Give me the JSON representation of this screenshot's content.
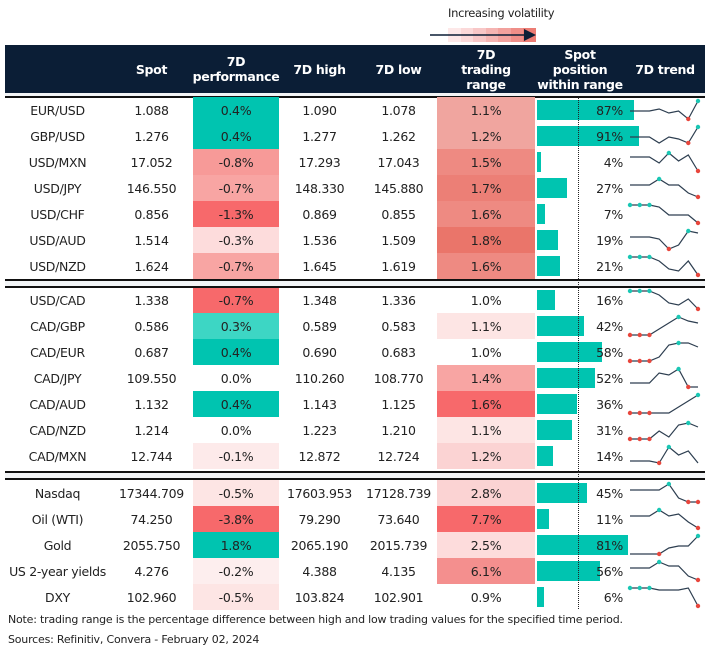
{
  "legend": {
    "label": "Increasing volatility",
    "gradient": [
      "#fde8e8",
      "#fbd9d9",
      "#f8c7c7",
      "#f5b4b2",
      "#f2a19d",
      "#ef8e88",
      "#ec7c74"
    ]
  },
  "colors": {
    "header_bg": "#0b1e36",
    "positive_strong": "#00c4b0",
    "positive_light": "#3dd6c4",
    "bar": "#00c4b0",
    "sparkline": "#2d3e50",
    "marker_high": "#19c7b4",
    "marker_low": "#e8463c"
  },
  "headers": {
    "name": "",
    "spot": "Spot",
    "performance": "7D performance",
    "high": "7D high",
    "low": "7D low",
    "range": "7D trading range",
    "position": "Spot position within range",
    "trend": "7D trend"
  },
  "groups": [
    {
      "rows": [
        {
          "name": "EUR/USD",
          "spot": "1.088",
          "perf": "0.4%",
          "perf_bg": "#00c4b0",
          "high": "1.090",
          "low": "1.078",
          "range": "1.1%",
          "range_bg": "#f0a59f",
          "position": 87,
          "position_label": "87%",
          "trend": [
            5,
            5,
            5,
            4,
            6,
            5,
            9,
            0
          ],
          "high_idx": [
            7
          ],
          "low_idx": [
            6
          ]
        },
        {
          "name": "GBP/USD",
          "spot": "1.276",
          "perf": "0.4%",
          "perf_bg": "#00c4b0",
          "high": "1.277",
          "low": "1.262",
          "range": "1.2%",
          "range_bg": "#f0a59f",
          "position": 91,
          "position_label": "91%",
          "trend": [
            5,
            5,
            5,
            8,
            5,
            6,
            8,
            0
          ],
          "high_idx": [
            7
          ],
          "low_idx": [
            6
          ]
        },
        {
          "name": "USD/MXN",
          "spot": "17.052",
          "perf": "-0.8%",
          "perf_bg": "#f79a98",
          "high": "17.293",
          "low": "17.043",
          "range": "1.5%",
          "range_bg": "#ee8a82",
          "position": 4,
          "position_label": "4%",
          "trend": [
            2,
            2,
            2,
            5,
            0,
            4,
            1,
            9
          ],
          "high_idx": [
            4
          ],
          "low_idx": [
            7
          ]
        },
        {
          "name": "USD/JPY",
          "spot": "146.550",
          "perf": "-0.7%",
          "perf_bg": "#f8a5a3",
          "high": "148.330",
          "low": "145.880",
          "range": "1.7%",
          "range_bg": "#ec7f76",
          "position": 27,
          "position_label": "27%",
          "trend": [
            3,
            3,
            3,
            0,
            3,
            3,
            7,
            9
          ],
          "high_idx": [
            3
          ],
          "low_idx": [
            7
          ]
        },
        {
          "name": "USD/CHF",
          "spot": "0.856",
          "perf": "-1.3%",
          "perf_bg": "#f7696b",
          "high": "0.869",
          "low": "0.855",
          "range": "1.6%",
          "range_bg": "#ee8a82",
          "position": 7,
          "position_label": "7%",
          "trend": [
            0,
            0,
            0,
            1,
            5,
            5,
            5,
            9
          ],
          "high_idx": [
            0,
            1,
            2
          ],
          "low_idx": [
            7
          ]
        },
        {
          "name": "USD/AUD",
          "spot": "1.514",
          "perf": "-0.3%",
          "perf_bg": "#fddcdc",
          "high": "1.536",
          "low": "1.509",
          "range": "1.8%",
          "range_bg": "#ea756a",
          "position": 19,
          "position_label": "19%",
          "trend": [
            3,
            3,
            3,
            4,
            9,
            7,
            0,
            1
          ],
          "high_idx": [
            6
          ],
          "low_idx": [
            4
          ]
        },
        {
          "name": "USD/NZD",
          "spot": "1.624",
          "perf": "-0.7%",
          "perf_bg": "#f8a5a3",
          "high": "1.645",
          "low": "1.619",
          "range": "1.6%",
          "range_bg": "#ee8a82",
          "position": 21,
          "position_label": "21%",
          "trend": [
            0,
            0,
            0,
            2,
            6,
            7,
            2,
            9
          ],
          "high_idx": [
            0,
            1,
            2
          ],
          "low_idx": [
            7
          ]
        }
      ]
    },
    {
      "rows": [
        {
          "name": "USD/CAD",
          "spot": "1.338",
          "perf": "-0.7%",
          "perf_bg": "#f7696b",
          "high": "1.348",
          "low": "1.336",
          "range": "1.0%",
          "range_bg": "#ffffff",
          "position": 16,
          "position_label": "16%",
          "trend": [
            0,
            0,
            0,
            2,
            6,
            7,
            4,
            9
          ],
          "high_idx": [
            0,
            1,
            2
          ],
          "low_idx": [
            7
          ]
        },
        {
          "name": "CAD/GBP",
          "spot": "0.586",
          "perf": "0.3%",
          "perf_bg": "#3dd6c4",
          "high": "0.589",
          "low": "0.583",
          "range": "1.1%",
          "range_bg": "#fde5e4",
          "position": 42,
          "position_label": "42%",
          "trend": [
            9,
            9,
            9,
            6,
            3,
            0,
            2,
            3
          ],
          "high_idx": [
            5
          ],
          "low_idx": [
            0,
            1,
            2
          ]
        },
        {
          "name": "CAD/EUR",
          "spot": "0.687",
          "perf": "0.4%",
          "perf_bg": "#00c4b0",
          "high": "0.690",
          "low": "0.683",
          "range": "1.0%",
          "range_bg": "#ffffff",
          "position": 58,
          "position_label": "58%",
          "trend": [
            9,
            9,
            9,
            7,
            1,
            0,
            0,
            2
          ],
          "high_idx": [
            5
          ],
          "low_idx": [
            0,
            1,
            2
          ]
        },
        {
          "name": "CAD/JPY",
          "spot": "109.550",
          "perf": "0.0%",
          "perf_bg": "#ffffff",
          "high": "110.260",
          "low": "108.770",
          "range": "1.4%",
          "range_bg": "#f8a5a3",
          "position": 52,
          "position_label": "52%",
          "trend": [
            7,
            7,
            7,
            2,
            3,
            0,
            9,
            9
          ],
          "high_idx": [
            5
          ],
          "low_idx": [
            6
          ]
        },
        {
          "name": "CAD/AUD",
          "spot": "1.132",
          "perf": "0.4%",
          "perf_bg": "#00c4b0",
          "high": "1.143",
          "low": "1.125",
          "range": "1.6%",
          "range_bg": "#f7696b",
          "position": 36,
          "position_label": "36%",
          "trend": [
            9,
            9,
            9,
            9,
            9,
            6,
            3,
            0
          ],
          "high_idx": [
            7
          ],
          "low_idx": [
            0,
            1,
            2
          ]
        },
        {
          "name": "CAD/NZD",
          "spot": "1.214",
          "perf": "0.0%",
          "perf_bg": "#ffffff",
          "high": "1.223",
          "low": "1.210",
          "range": "1.1%",
          "range_bg": "#fde5e4",
          "position": 31,
          "position_label": "31%",
          "trend": [
            9,
            9,
            9,
            5,
            8,
            2,
            1,
            3
          ],
          "high_idx": [
            6
          ],
          "low_idx": [
            0,
            1,
            2
          ]
        },
        {
          "name": "CAD/MXN",
          "spot": "12.744",
          "perf": "-0.1%",
          "perf_bg": "#fdeaea",
          "high": "12.872",
          "low": "12.724",
          "range": "1.2%",
          "range_bg": "#fbd3d3",
          "position": 14,
          "position_label": "14%",
          "trend": [
            7,
            7,
            7,
            8,
            0,
            4,
            2,
            8
          ],
          "high_idx": [
            4
          ],
          "low_idx": [
            3
          ]
        }
      ]
    },
    {
      "rows": [
        {
          "name": "Nasdaq",
          "spot": "17344.709",
          "perf": "-0.5%",
          "perf_bg": "#fde5e4",
          "high": "17603.953",
          "low": "17128.739",
          "range": "2.8%",
          "range_bg": "#fbd3d3",
          "position": 45,
          "position_label": "45%",
          "trend": [
            3,
            3,
            3,
            3,
            0,
            7,
            9,
            9
          ],
          "high_idx": [
            4
          ],
          "low_idx": [
            6,
            7
          ]
        },
        {
          "name": "Oil (WTI)",
          "spot": "74.250",
          "perf": "-3.8%",
          "perf_bg": "#f7696b",
          "high": "79.290",
          "low": "73.640",
          "range": "7.7%",
          "range_bg": "#f7696b",
          "position": 11,
          "position_label": "11%",
          "trend": [
            3,
            3,
            3,
            0,
            3,
            2,
            6,
            9
          ],
          "high_idx": [
            3
          ],
          "low_idx": [
            7
          ]
        },
        {
          "name": "Gold",
          "spot": "2055.750",
          "perf": "1.8%",
          "perf_bg": "#00c4b0",
          "high": "2065.190",
          "low": "2015.739",
          "range": "2.5%",
          "range_bg": "#fddcdc",
          "position": 81,
          "position_label": "81%",
          "trend": [
            9,
            9,
            9,
            9,
            6,
            5,
            5,
            0
          ],
          "high_idx": [
            7
          ],
          "low_idx": [
            3
          ]
        },
        {
          "name": "US 2-year yields",
          "spot": "4.276",
          "perf": "-0.2%",
          "perf_bg": "#fdeeee",
          "high": "4.388",
          "low": "4.135",
          "range": "6.1%",
          "range_bg": "#f48f8e",
          "position": 56,
          "position_label": "56%",
          "trend": [
            3,
            3,
            3,
            0,
            2,
            2,
            7,
            9
          ],
          "high_idx": [
            3
          ],
          "low_idx": [
            7
          ]
        },
        {
          "name": "DXY",
          "spot": "102.960",
          "perf": "-0.5%",
          "perf_bg": "#fde5e4",
          "high": "103.824",
          "low": "102.901",
          "range": "0.9%",
          "range_bg": "#ffffff",
          "position": 6,
          "position_label": "6%",
          "trend": [
            0,
            0,
            0,
            1,
            1,
            1,
            0,
            9
          ],
          "high_idx": [
            0,
            1,
            2
          ],
          "low_idx": [
            7
          ]
        }
      ]
    }
  ],
  "footer": {
    "note": "Note: trading range is the percentage difference between high and low trading values for the specified time period.",
    "sources": "Sources: Refinitiv, Convera - February 02, 2024"
  }
}
